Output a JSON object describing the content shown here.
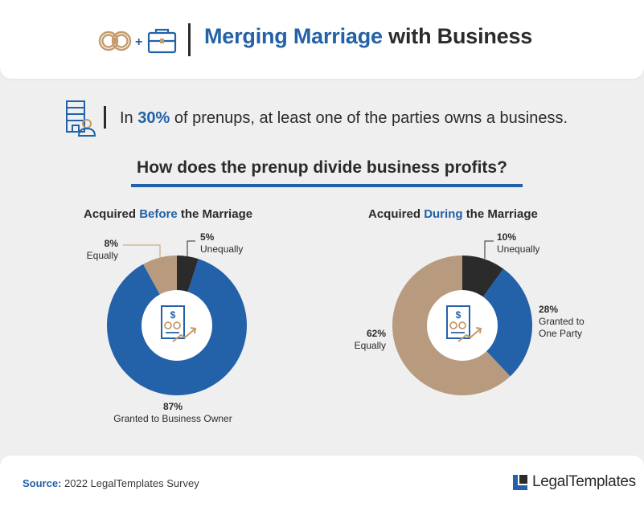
{
  "header": {
    "title_accent": "Merging Marriage",
    "title_rest": "with Business",
    "plus": "+"
  },
  "stat": {
    "prefix": "In",
    "percent": "30%",
    "suffix": "of prenups, at least one of the parties owns a business."
  },
  "question": "How does the prenup divide business profits?",
  "colors": {
    "blue": "#2361a8",
    "tan": "#b89b7e",
    "dark": "#2b2b2b",
    "icon_blue": "#2361a8",
    "icon_tan": "#c49a6c"
  },
  "chart_data": [
    {
      "type": "pie",
      "title_pre": "Acquired",
      "title_accent": "Before",
      "title_post": "the Marriage",
      "slices": [
        {
          "pct": "5%",
          "name": "Unequally",
          "value": 5,
          "color": "#2b2b2b"
        },
        {
          "pct": "87%",
          "name": "Granted to Business Owner",
          "value": 87,
          "color": "#2361a8"
        },
        {
          "pct": "8%",
          "name": "Equally",
          "value": 8,
          "color": "#b89b7e"
        }
      ]
    },
    {
      "type": "pie",
      "title_pre": "Acquired",
      "title_accent": "During",
      "title_post": "the Marriage",
      "slices": [
        {
          "pct": "10%",
          "name": "Unequally",
          "value": 10,
          "color": "#2b2b2b"
        },
        {
          "pct": "28%",
          "name": "Granted to One Party",
          "value": 28,
          "color": "#2361a8"
        },
        {
          "pct": "62%",
          "name": "Equally",
          "value": 62,
          "color": "#b89b7e"
        }
      ]
    }
  ],
  "footer": {
    "source_label": "Source:",
    "source_text": "2022 LegalTemplates Survey",
    "brand": "LegalTemplates"
  }
}
